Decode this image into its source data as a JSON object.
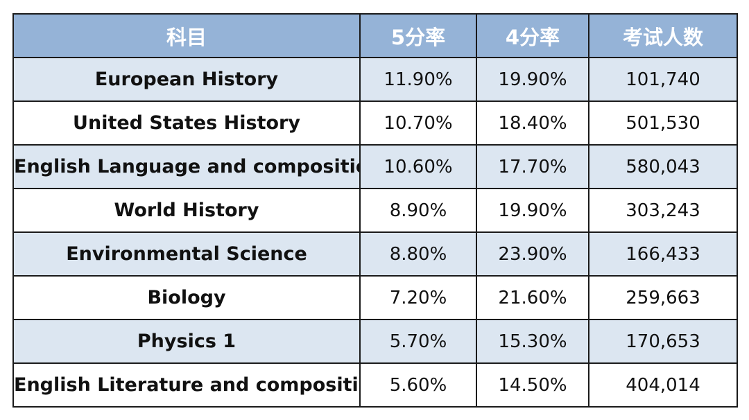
{
  "table": {
    "headers": [
      "科目",
      "5分率",
      "4分率",
      "考试人数"
    ],
    "rows": [
      {
        "subject": "European History",
        "rate5": "11.90%",
        "rate4": "19.90%",
        "count": "101,740"
      },
      {
        "subject": "United States History",
        "rate5": "10.70%",
        "rate4": "18.40%",
        "count": "501,530"
      },
      {
        "subject": "English Language and composition",
        "rate5": "10.60%",
        "rate4": "17.70%",
        "count": "580,043"
      },
      {
        "subject": "World History",
        "rate5": "8.90%",
        "rate4": "19.90%",
        "count": "303,243"
      },
      {
        "subject": "Environmental Science",
        "rate5": "8.80%",
        "rate4": "23.90%",
        "count": "166,433"
      },
      {
        "subject": "Biology",
        "rate5": "7.20%",
        "rate4": "21.60%",
        "count": "259,663"
      },
      {
        "subject": "Physics 1",
        "rate5": "5.70%",
        "rate4": "15.30%",
        "count": "170,653"
      },
      {
        "subject": "English Literature and composition",
        "rate5": "5.60%",
        "rate4": "14.50%",
        "count": "404,014"
      }
    ]
  },
  "colors": {
    "header_bg": "#95b3d7",
    "band_bg": "#dce6f1",
    "plain_bg": "#ffffff",
    "border": "#1a1a1a"
  }
}
